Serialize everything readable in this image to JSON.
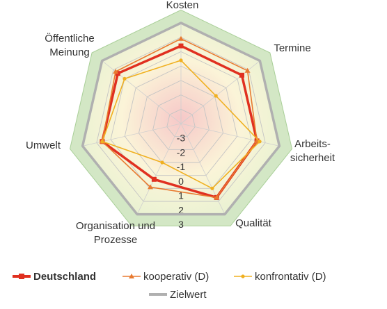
{
  "chart_data": {
    "type": "radar",
    "axes": [
      "Kosten",
      "Termine",
      "Arbeits-\nsicherheit",
      "Qualität",
      "Organisation und\nProzesse",
      "Umwelt",
      "Öffentliche\nMeinung"
    ],
    "ticks": [
      -3,
      -2,
      -1,
      0,
      1,
      2,
      3
    ],
    "range": [
      -4,
      3
    ],
    "series": [
      {
        "name": "Deutschland",
        "values": [
          1.4,
          1.4,
          1.4,
          1.7,
          0.3,
          1.6,
          1.6
        ],
        "color": "#e03020",
        "marker": "square"
      },
      {
        "name": "kooperativ (D)",
        "values": [
          1.9,
          1.9,
          1.4,
          1.7,
          0.9,
          1.6,
          1.8
        ],
        "color": "#e87a30",
        "marker": "triangle"
      },
      {
        "name": "konfrontativ (D)",
        "values": [
          0.4,
          -0.9,
          1.6,
          1.0,
          -1.0,
          1.6,
          1.0
        ],
        "color": "#f0b020",
        "marker": "circle"
      },
      {
        "name": "Zielwert",
        "values": [
          3,
          3,
          3,
          3,
          3,
          3,
          3
        ],
        "color": "#b0b0b0",
        "marker": "none"
      }
    ],
    "grid": true,
    "legend": "bottom"
  }
}
